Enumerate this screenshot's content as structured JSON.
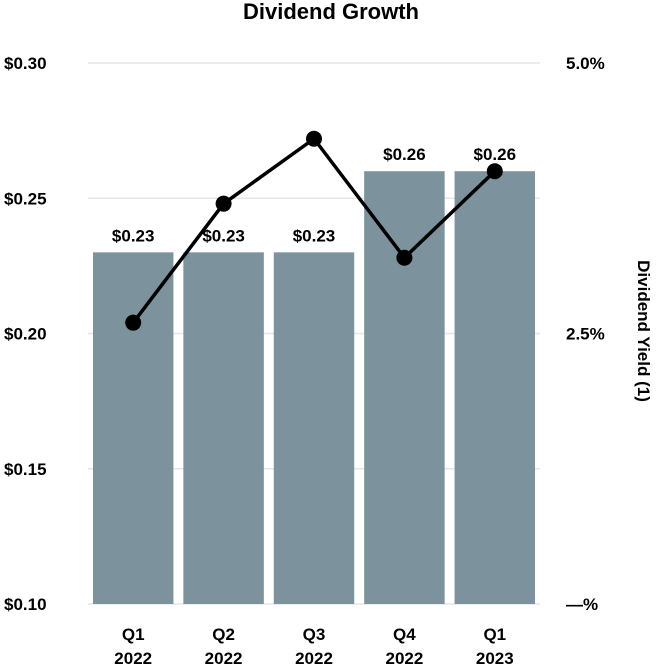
{
  "chart_data": {
    "type": "bar",
    "title": "Dividend Growth",
    "xlabel": "",
    "ylabel": "",
    "y2label": "Dividend Yield (1)",
    "categories": [
      [
        "Q1",
        "2022"
      ],
      [
        "Q2",
        "2022"
      ],
      [
        "Q3",
        "2022"
      ],
      [
        "Q4",
        "2022"
      ],
      [
        "Q1",
        "2023"
      ]
    ],
    "ylim": [
      0.1,
      0.3
    ],
    "y_ticks": [
      0.1,
      0.15,
      0.2,
      0.25,
      0.3
    ],
    "y_tick_labels": [
      "$0.10",
      "$0.15",
      "$0.20",
      "$0.25",
      "$0.30"
    ],
    "y2lim": [
      0,
      5.0
    ],
    "y2_ticks": [
      0,
      2.5,
      5.0
    ],
    "y2_tick_labels": [
      "—%",
      "2.5%",
      "5.0%"
    ],
    "grid": true,
    "series": [
      {
        "type": "bar",
        "axis": "left",
        "values": [
          0.23,
          0.23,
          0.23,
          0.26,
          0.26
        ],
        "labels": [
          "$0.23",
          "$0.23",
          "$0.23",
          "$0.26",
          "$0.26"
        ],
        "color": "#7c929c"
      },
      {
        "type": "line",
        "axis": "right",
        "values": [
          2.6,
          3.7,
          4.3,
          3.2,
          4.0
        ],
        "color": "#000000"
      }
    ]
  }
}
